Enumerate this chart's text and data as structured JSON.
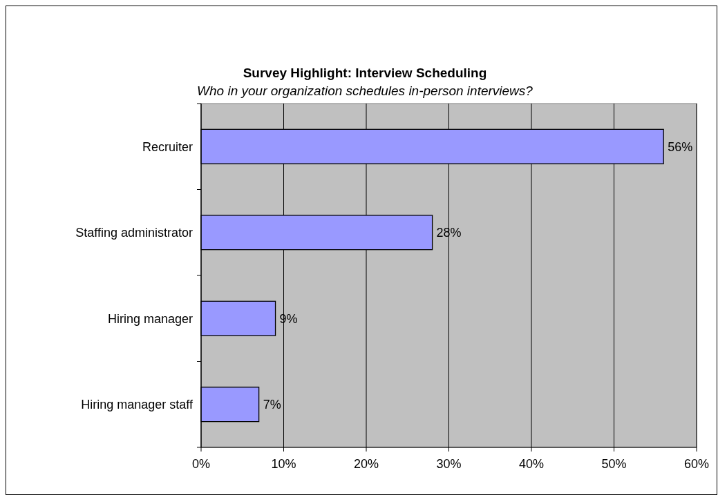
{
  "chart_data": {
    "type": "bar",
    "orientation": "horizontal",
    "title": "Survey Highlight: Interview Scheduling",
    "subtitle": "Who in your organization schedules in-person interviews?",
    "categories": [
      "Recruiter",
      "Staffing administrator",
      "Hiring manager",
      "Hiring manager staff"
    ],
    "values": [
      56,
      28,
      9,
      7
    ],
    "color": "#9999ff",
    "value_labels": [
      "56%",
      "28%",
      "9%",
      "7%"
    ],
    "xlim": [
      0,
      60
    ],
    "xticks": [
      {
        "value": 0,
        "label": "0%"
      },
      {
        "value": 10,
        "label": "10%"
      },
      {
        "value": 20,
        "label": "20%"
      },
      {
        "value": 30,
        "label": "30%"
      },
      {
        "value": 40,
        "label": "40%"
      },
      {
        "value": 50,
        "label": "50%"
      },
      {
        "value": 60,
        "label": "60%"
      }
    ],
    "grid": "x"
  }
}
